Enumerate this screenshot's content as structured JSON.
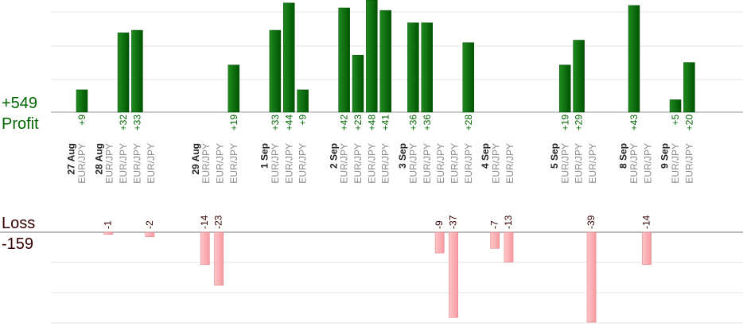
{
  "summary": {
    "profit_total": "+549",
    "profit_label": "Profit",
    "loss_label": "Loss",
    "loss_total": "-159"
  },
  "colors": {
    "profit": "#006600",
    "profit_bar": "#0a6a0a",
    "profit_bar_edge": "#034d03",
    "loss_text": "#330000",
    "loss_bar": "#ffb0b3",
    "loss_bar_edge": "#e07a80",
    "date_text": "#222222",
    "pair_text": "#8a8a8a",
    "gridline": "#e6e6e6",
    "axis": "#999999"
  },
  "chart_data": {
    "type": "bar",
    "profit_ylim": [
      0,
      45
    ],
    "loss_ylim": [
      0,
      40
    ],
    "groups": [
      {
        "date": "27 Aug",
        "trades": [
          {
            "pair": "EUR/JPY",
            "value": 9
          }
        ]
      },
      {
        "date": "28 Aug",
        "trades": [
          {
            "pair": "EUR/JPY",
            "value": -1
          },
          {
            "pair": "EUR/JPY",
            "value": 32
          },
          {
            "pair": "EUR/JPY",
            "value": 33
          },
          {
            "pair": "EUR/JPY",
            "value": -2
          }
        ]
      },
      {
        "date": "29 Aug",
        "trades": [
          {
            "pair": "EUR/JPY",
            "value": -14
          },
          {
            "pair": "EUR/JPY",
            "value": -23
          },
          {
            "pair": "EUR/JPY",
            "value": 19
          }
        ]
      },
      {
        "date": "1 Sep",
        "trades": [
          {
            "pair": "EUR/JPY",
            "value": 33
          },
          {
            "pair": "EUR/JPY",
            "value": 44
          },
          {
            "pair": "EUR/JPY",
            "value": 9
          }
        ]
      },
      {
        "date": "2 Sep",
        "trades": [
          {
            "pair": "EUR/JPY",
            "value": 42
          },
          {
            "pair": "EUR/JPY",
            "value": 23
          },
          {
            "pair": "EUR/JPY",
            "value": 48
          },
          {
            "pair": "EUR/JPY",
            "value": 41
          }
        ]
      },
      {
        "date": "3 Sep",
        "trades": [
          {
            "pair": "EUR/JPY",
            "value": 36
          },
          {
            "pair": "EUR/JPY",
            "value": 36
          },
          {
            "pair": "EUR/JPY",
            "value": -9
          },
          {
            "pair": "EUR/JPY",
            "value": -37
          },
          {
            "pair": "EUR/JPY",
            "value": 28
          }
        ]
      },
      {
        "date": "4 Sep",
        "trades": [
          {
            "pair": "EUR/JPY",
            "value": -7
          },
          {
            "pair": "EUR/JPY",
            "value": -13
          }
        ]
      },
      {
        "date": "5 Sep",
        "trades": [
          {
            "pair": "EUR/JPY",
            "value": 19
          },
          {
            "pair": "EUR/JPY",
            "value": 29
          },
          {
            "pair": "EUR/JPY",
            "value": -39
          }
        ]
      },
      {
        "date": "8 Sep",
        "trades": [
          {
            "pair": "EUR/JPY",
            "value": 43
          },
          {
            "pair": "EUR/JPY",
            "value": -14
          }
        ]
      },
      {
        "date": "9 Sep",
        "trades": [
          {
            "pair": "EUR/JPY",
            "value": 5
          },
          {
            "pair": "EUR/JPY",
            "value": 20
          }
        ]
      }
    ]
  }
}
